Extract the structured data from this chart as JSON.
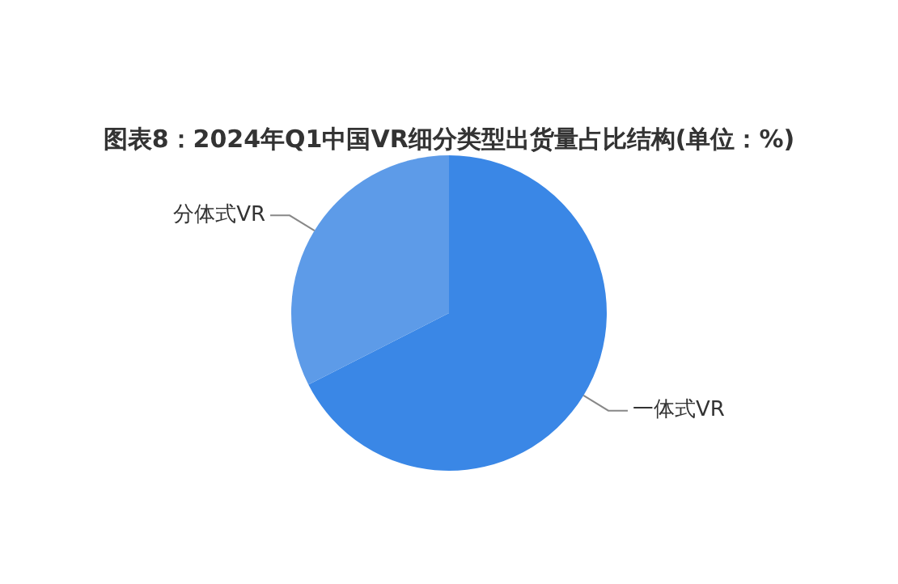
{
  "chart_data": {
    "type": "pie",
    "title": "图表8：2024年Q1中国VR细分类型出货量占比结构(单位：%)",
    "categories": [
      "一体式VR",
      "分体式VR"
    ],
    "values": [
      67.5,
      32.5
    ],
    "colors": [
      "#3a87e6",
      "#5d9be8"
    ],
    "legend": false
  }
}
